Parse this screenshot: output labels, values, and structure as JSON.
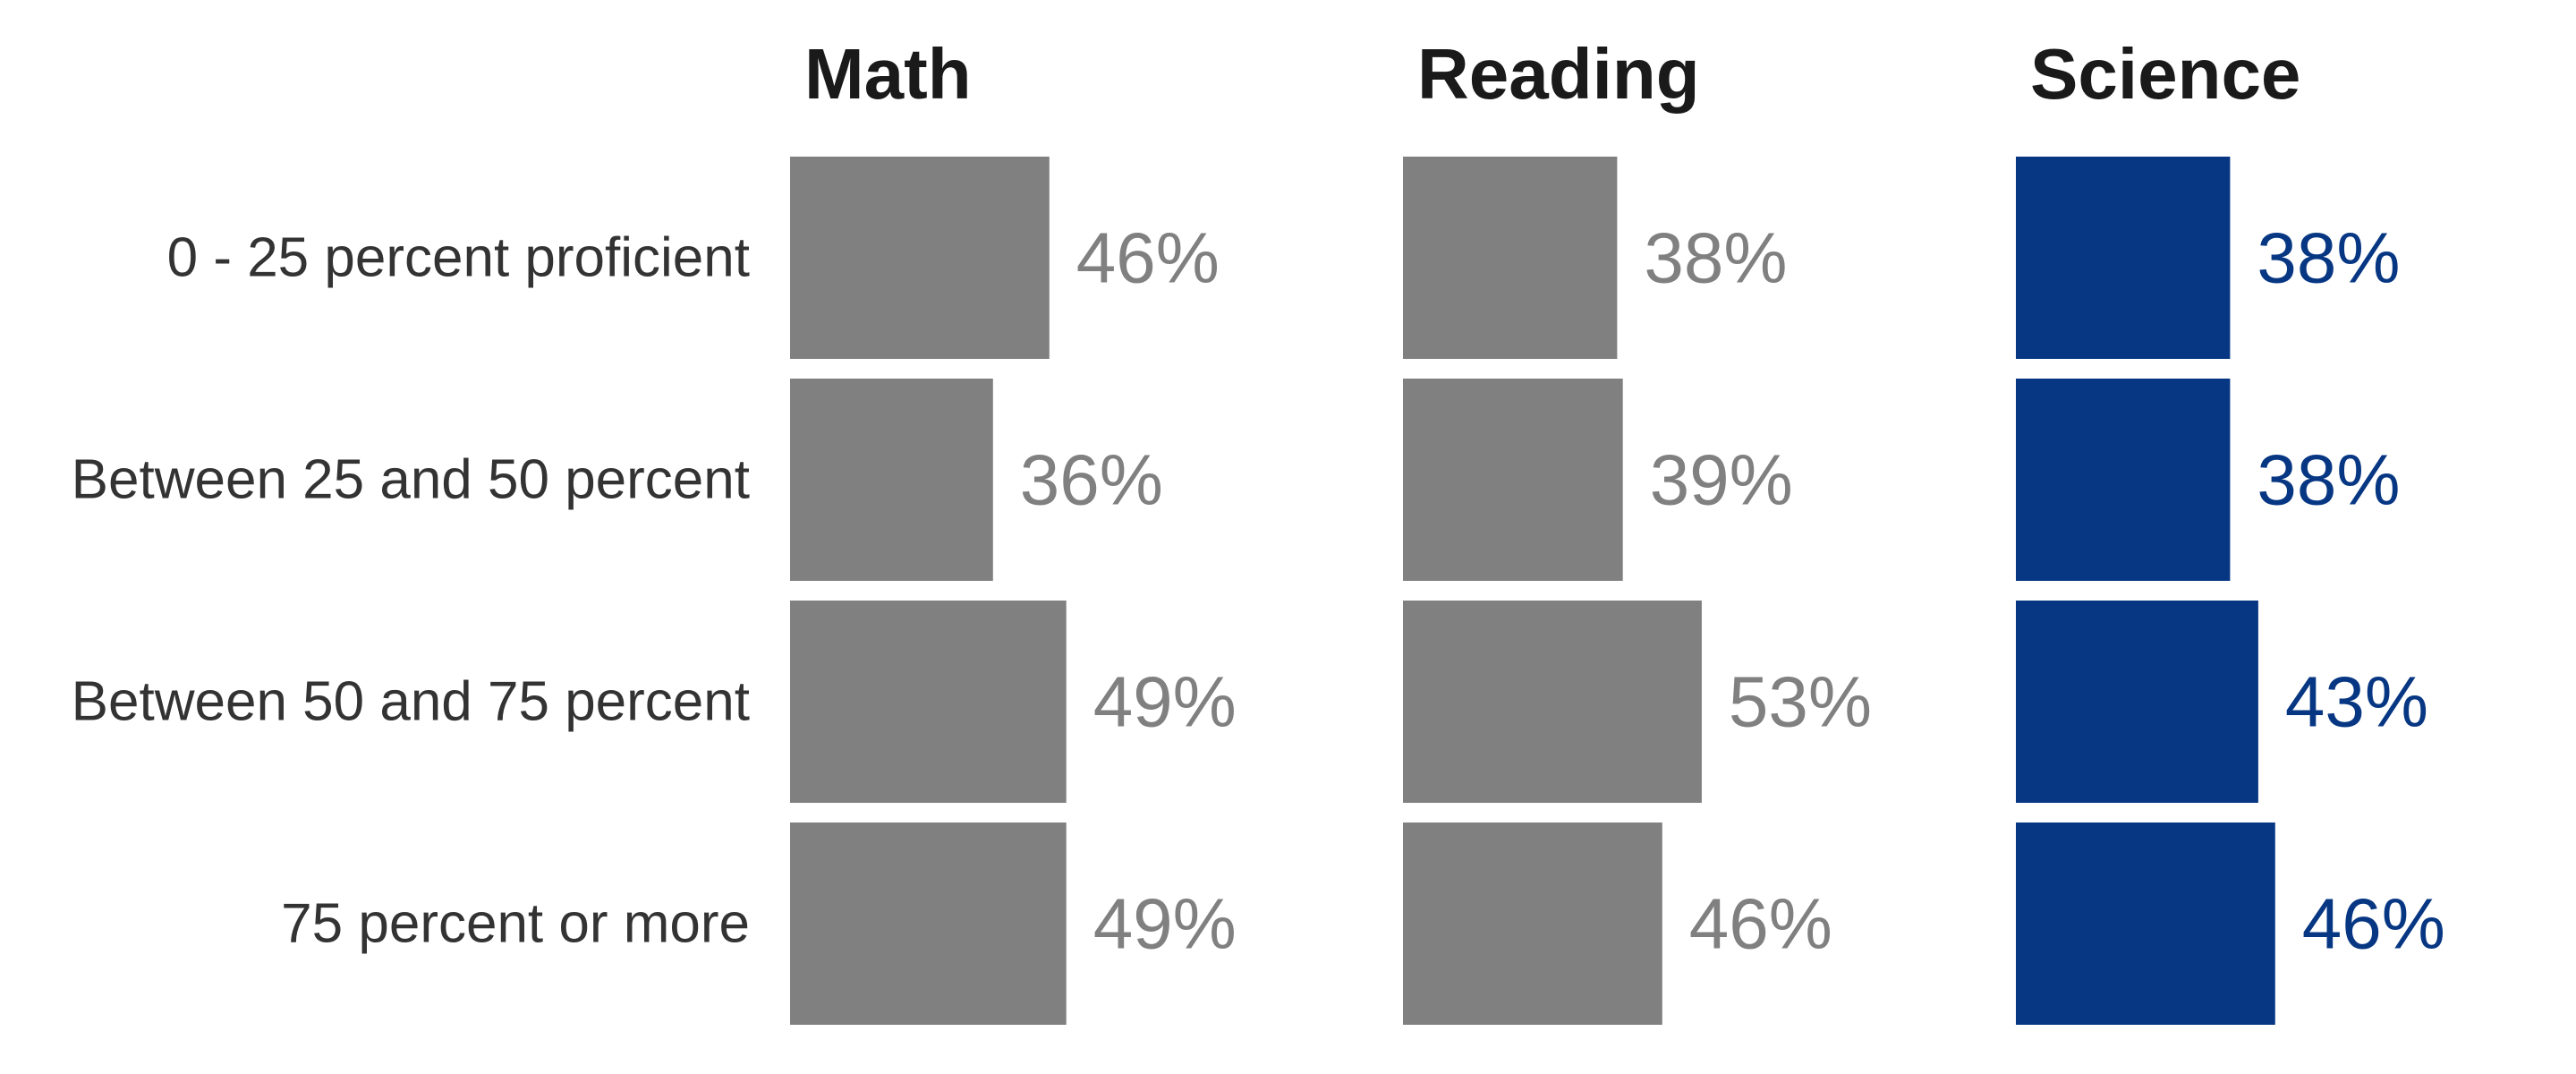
{
  "colors": {
    "muted_bar": "#808080",
    "muted_label": "#808080",
    "highlight_bar": "#073783",
    "highlight_label": "#073783",
    "title": "#1a1a1a",
    "category_label": "#333333"
  },
  "chart_data": {
    "type": "bar",
    "orientation": "horizontal",
    "categories": [
      "0 - 25 percent proficient",
      "Between 25 and 50 percent",
      "Between 50 and 75 percent",
      "75 percent or more"
    ],
    "value_suffix": "%",
    "grid": false,
    "legend": "none",
    "xlim": [
      0,
      100
    ],
    "series": [
      {
        "name": "Math",
        "values": [
          46,
          36,
          49,
          49
        ],
        "highlight": false
      },
      {
        "name": "Reading",
        "values": [
          38,
          39,
          53,
          46
        ],
        "highlight": false
      },
      {
        "name": "Science",
        "values": [
          38,
          38,
          43,
          46
        ],
        "highlight": true
      }
    ]
  }
}
